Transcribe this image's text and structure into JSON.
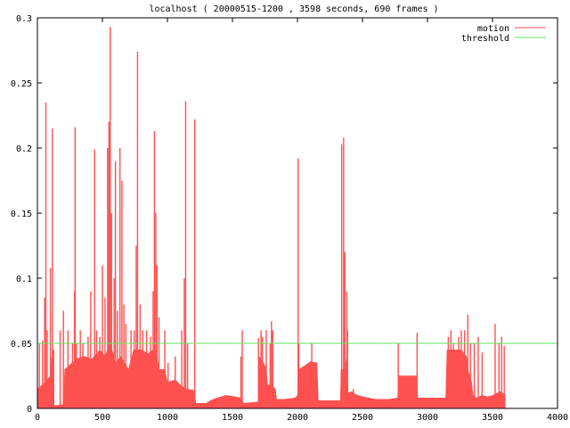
{
  "colors": {
    "background": "#ffffff",
    "frame": "#000000",
    "motion": "#ff5050",
    "threshold": "#5ae65a"
  },
  "chart_data": {
    "type": "area",
    "title": "localhost ( 20000515-1200 , 3598 seconds, 690 frames )",
    "xlabel": "",
    "ylabel": "",
    "xlim": [
      0,
      4000
    ],
    "ylim": [
      0,
      0.3
    ],
    "x_ticks": [
      "0",
      "500",
      "1000",
      "1500",
      "2000",
      "2500",
      "3000",
      "3500",
      "4000"
    ],
    "y_ticks": [
      "0",
      "0.05",
      "0.1",
      "0.15",
      "0.2",
      "0.25",
      "0.3"
    ],
    "grid": false,
    "legend_position": "top-right",
    "series": [
      {
        "name": "motion",
        "type": "area",
        "color": "#ff5050",
        "baseline": [
          [
            0,
            0.015
          ],
          [
            60,
            0.02
          ],
          [
            100,
            0.025
          ],
          [
            110,
            0.04
          ],
          [
            130,
            0.002
          ],
          [
            200,
            0.003
          ],
          [
            210,
            0.03
          ],
          [
            300,
            0.038
          ],
          [
            360,
            0.04
          ],
          [
            420,
            0.038
          ],
          [
            480,
            0.045
          ],
          [
            520,
            0.04
          ],
          [
            560,
            0.05
          ],
          [
            600,
            0.035
          ],
          [
            640,
            0.04
          ],
          [
            700,
            0.03
          ],
          [
            740,
            0.045
          ],
          [
            800,
            0.045
          ],
          [
            850,
            0.042
          ],
          [
            900,
            0.046
          ],
          [
            940,
            0.03
          ],
          [
            980,
            0.03
          ],
          [
            1000,
            0.02
          ],
          [
            1060,
            0.022
          ],
          [
            1100,
            0.018
          ],
          [
            1140,
            0.015
          ],
          [
            1200,
            0.014
          ],
          [
            1220,
            0.004
          ],
          [
            1300,
            0.004
          ],
          [
            1330,
            0.006
          ],
          [
            1380,
            0.008
          ],
          [
            1450,
            0.01
          ],
          [
            1520,
            0.009
          ],
          [
            1560,
            0.008
          ],
          [
            1590,
            0.004
          ],
          [
            1700,
            0.005
          ],
          [
            1705,
            0.04
          ],
          [
            1740,
            0.035
          ],
          [
            1760,
            0.03
          ],
          [
            1770,
            0.018
          ],
          [
            1800,
            0.018
          ],
          [
            1830,
            0.015
          ],
          [
            1840,
            0.007
          ],
          [
            1900,
            0.007
          ],
          [
            1980,
            0.008
          ],
          [
            2000,
            0.01
          ],
          [
            2010,
            0.03
          ],
          [
            2060,
            0.033
          ],
          [
            2100,
            0.036
          ],
          [
            2150,
            0.035
          ],
          [
            2160,
            0.006
          ],
          [
            2250,
            0.006
          ],
          [
            2330,
            0.006
          ],
          [
            2335,
            0.03
          ],
          [
            2360,
            0.03
          ],
          [
            2380,
            0.04
          ],
          [
            2390,
            0.012
          ],
          [
            2420,
            0.013
          ],
          [
            2440,
            0.011
          ],
          [
            2500,
            0.009
          ],
          [
            2600,
            0.007
          ],
          [
            2700,
            0.007
          ],
          [
            2770,
            0.008
          ],
          [
            2780,
            0.025
          ],
          [
            2850,
            0.025
          ],
          [
            2920,
            0.025
          ],
          [
            2925,
            0.008
          ],
          [
            3000,
            0.008
          ],
          [
            3100,
            0.008
          ],
          [
            3140,
            0.008
          ],
          [
            3150,
            0.045
          ],
          [
            3200,
            0.045
          ],
          [
            3260,
            0.045
          ],
          [
            3300,
            0.04
          ],
          [
            3310,
            0.03
          ],
          [
            3340,
            0.02
          ],
          [
            3350,
            0.01
          ],
          [
            3380,
            0.008
          ],
          [
            3420,
            0.01
          ],
          [
            3460,
            0.009
          ],
          [
            3500,
            0.01
          ],
          [
            3540,
            0.012
          ],
          [
            3560,
            0.013
          ],
          [
            3598,
            0.01
          ]
        ],
        "spikes": [
          [
            15,
            0.05
          ],
          [
            40,
            0.052
          ],
          [
            55,
            0.085
          ],
          [
            65,
            0.235
          ],
          [
            75,
            0.06
          ],
          [
            100,
            0.108
          ],
          [
            115,
            0.215
          ],
          [
            125,
            0.045
          ],
          [
            175,
            0.06
          ],
          [
            200,
            0.075
          ],
          [
            235,
            0.06
          ],
          [
            270,
            0.05
          ],
          [
            285,
            0.09
          ],
          [
            290,
            0.216
          ],
          [
            300,
            0.05
          ],
          [
            330,
            0.06
          ],
          [
            350,
            0.05
          ],
          [
            390,
            0.055
          ],
          [
            410,
            0.09
          ],
          [
            440,
            0.199
          ],
          [
            455,
            0.06
          ],
          [
            480,
            0.055
          ],
          [
            500,
            0.11
          ],
          [
            520,
            0.085
          ],
          [
            540,
            0.2
          ],
          [
            550,
            0.22
          ],
          [
            560,
            0.293
          ],
          [
            570,
            0.15
          ],
          [
            590,
            0.1
          ],
          [
            600,
            0.19
          ],
          [
            615,
            0.075
          ],
          [
            635,
            0.2
          ],
          [
            650,
            0.175
          ],
          [
            665,
            0.08
          ],
          [
            680,
            0.065
          ],
          [
            720,
            0.06
          ],
          [
            745,
            0.06
          ],
          [
            760,
            0.125
          ],
          [
            770,
            0.274
          ],
          [
            790,
            0.08
          ],
          [
            810,
            0.06
          ],
          [
            840,
            0.06
          ],
          [
            870,
            0.055
          ],
          [
            890,
            0.09
          ],
          [
            900,
            0.213
          ],
          [
            910,
            0.15
          ],
          [
            920,
            0.11
          ],
          [
            935,
            0.07
          ],
          [
            980,
            0.06
          ],
          [
            1005,
            0.035
          ],
          [
            1060,
            0.04
          ],
          [
            1110,
            0.06
          ],
          [
            1130,
            0.1
          ],
          [
            1140,
            0.236
          ],
          [
            1155,
            0.05
          ],
          [
            1210,
            0.222
          ],
          [
            1565,
            0.04
          ],
          [
            1575,
            0.06
          ],
          [
            1700,
            0.054
          ],
          [
            1720,
            0.06
          ],
          [
            1730,
            0.055
          ],
          [
            1760,
            0.06
          ],
          [
            1790,
            0.05
          ],
          [
            1800,
            0.067
          ],
          [
            1810,
            0.06
          ],
          [
            2005,
            0.192
          ],
          [
            2010,
            0.05
          ],
          [
            2110,
            0.05
          ],
          [
            2340,
            0.203
          ],
          [
            2355,
            0.208
          ],
          [
            2365,
            0.12
          ],
          [
            2380,
            0.09
          ],
          [
            2385,
            0.06
          ],
          [
            2430,
            0.015
          ],
          [
            2775,
            0.05
          ],
          [
            2790,
            0.025
          ],
          [
            2920,
            0.058
          ],
          [
            3160,
            0.055
          ],
          [
            3180,
            0.06
          ],
          [
            3200,
            0.05
          ],
          [
            3240,
            0.055
          ],
          [
            3260,
            0.06
          ],
          [
            3285,
            0.06
          ],
          [
            3310,
            0.072
          ],
          [
            3330,
            0.05
          ],
          [
            3360,
            0.05
          ],
          [
            3390,
            0.055
          ],
          [
            3420,
            0.043
          ],
          [
            3520,
            0.065
          ],
          [
            3550,
            0.05
          ],
          [
            3570,
            0.055
          ],
          [
            3590,
            0.048
          ]
        ]
      },
      {
        "name": "threshold",
        "type": "line",
        "color": "#5ae65a",
        "points": [
          [
            0,
            0.05
          ],
          [
            4000,
            0.05
          ]
        ]
      }
    ]
  }
}
